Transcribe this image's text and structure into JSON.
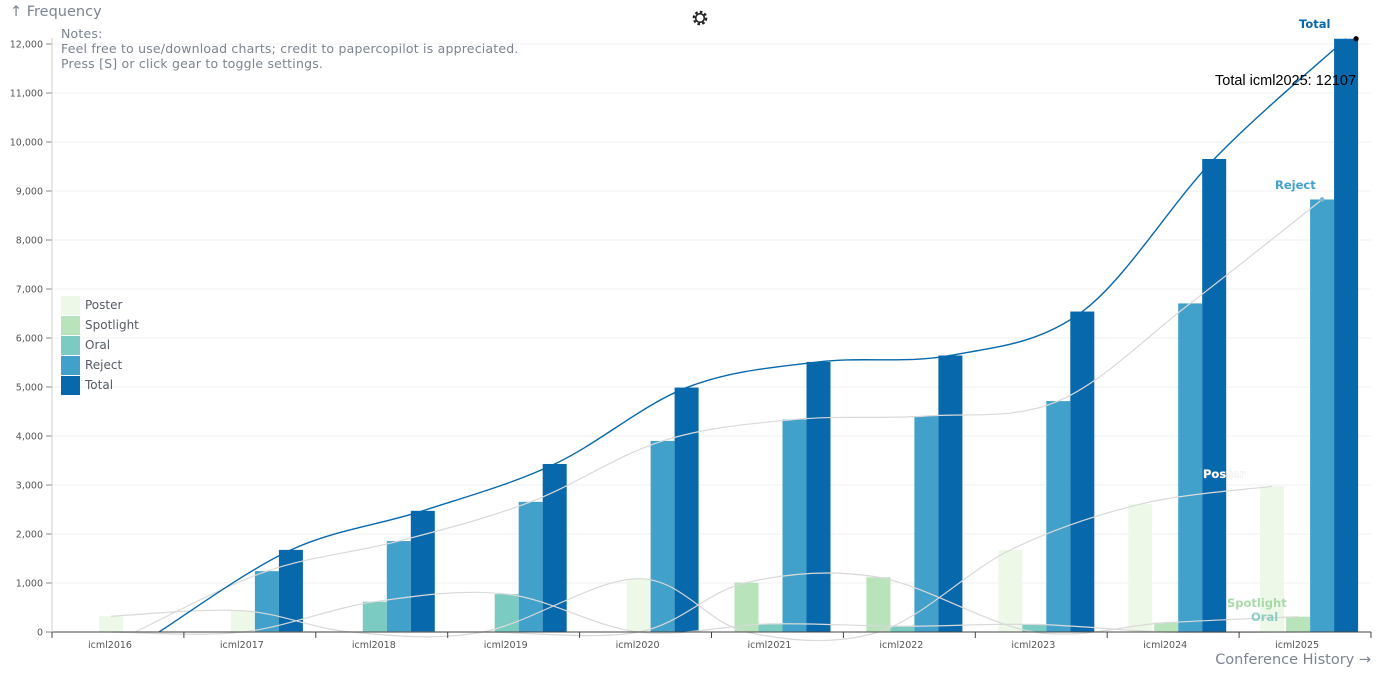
{
  "axes": {
    "y_title": "↑ Frequency",
    "x_title": "Conference History →"
  },
  "notes": {
    "line1": "Notes:",
    "line2": "Feel free to use/download charts; credit to papercopilot is appreciated.",
    "line3": "Press [S] or click gear to toggle settings."
  },
  "settings_icon": "gear-icon",
  "tooltip": "Total icml2025: 12107",
  "colors": {
    "Poster": "#edf8e9",
    "Spotlight": "#b9e3bb",
    "Oral": "#7ccbc2",
    "Reject": "#42a1cb",
    "Total": "#0868ac",
    "smooth_line": "#d9d9d9",
    "grid": "#f1f1f1",
    "axis": "#333333"
  },
  "chart_data": {
    "type": "bar",
    "categories": [
      "icml2016",
      "icml2017",
      "icml2018",
      "icml2019",
      "icml2020",
      "icml2021",
      "icml2022",
      "icml2023",
      "icml2024",
      "icml2025"
    ],
    "series": [
      {
        "name": "Poster",
        "values": [
          322,
          434,
          0,
          0,
          1088,
          0,
          0,
          1673,
          2609,
          2974
        ]
      },
      {
        "name": "Spotlight",
        "values": [
          0,
          0,
          0,
          0,
          0,
          1009,
          1117,
          0,
          191,
          313
        ]
      },
      {
        "name": "Oral",
        "values": [
          0,
          0,
          618,
          773,
          0,
          166,
          118,
          155,
          0,
          0
        ]
      },
      {
        "name": "Reject",
        "values": [
          0,
          1242,
          1855,
          2656,
          3900,
          4337,
          4408,
          4712,
          6706,
          8827
        ]
      },
      {
        "name": "Total",
        "values": [
          0,
          1676,
          2473,
          3429,
          4988,
          5512,
          5643,
          6540,
          9653,
          12107
        ]
      }
    ],
    "ylim": [
      0,
      12000
    ],
    "yticks": [
      0,
      1000,
      2000,
      3000,
      4000,
      5000,
      6000,
      7000,
      8000,
      9000,
      10000,
      11000,
      12000
    ],
    "ytick_labels": [
      "0",
      "1,000",
      "2,000",
      "3,000",
      "4,000",
      "5,000",
      "6,000",
      "7,000",
      "8,000",
      "9,000",
      "10,000",
      "11,000",
      "12,000"
    ],
    "grid": true,
    "legend": [
      "Poster",
      "Spotlight",
      "Oral",
      "Reject",
      "Total"
    ],
    "legend_position": "left-middle",
    "end_labels": [
      "Total",
      "Reject",
      "Poster",
      "Spotlight",
      "Oral"
    ]
  }
}
